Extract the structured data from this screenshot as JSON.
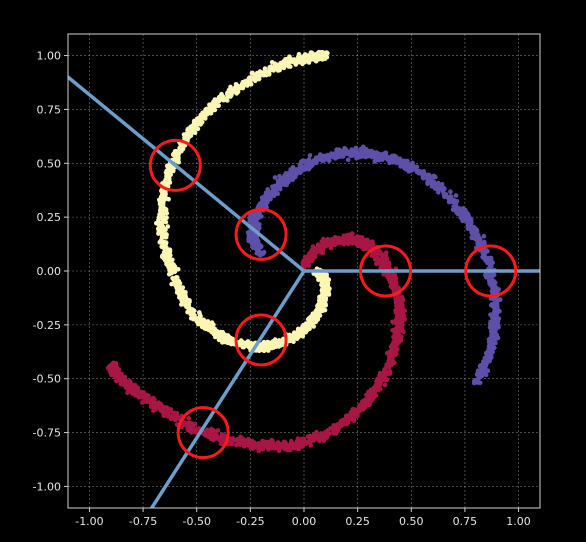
{
  "chart_data": {
    "type": "scatter",
    "title": "",
    "xlabel": "",
    "ylabel": "",
    "xlim": [
      -1.1,
      1.1
    ],
    "ylim": [
      -1.1,
      1.1
    ],
    "grid": true,
    "xticks": [
      "-1.00",
      "-0.75",
      "-0.50",
      "-0.25",
      "0.00",
      "0.25",
      "0.50",
      "0.75",
      "1.00"
    ],
    "yticks": [
      "-1.00",
      "-0.75",
      "-0.50",
      "-0.25",
      "0.00",
      "0.25",
      "0.50",
      "0.75",
      "1.00"
    ],
    "xtick_values": [
      -1,
      -0.75,
      -0.5,
      -0.25,
      0,
      0.25,
      0.5,
      0.75,
      1
    ],
    "ytick_values": [
      -1,
      -0.75,
      -0.5,
      -0.25,
      0,
      0.25,
      0.5,
      0.75,
      1
    ],
    "series": [
      {
        "color": "#fbf6b4",
        "points": [
          [
            0.06,
            -0.01
          ],
          [
            0.1,
            -0.03
          ],
          [
            0.1,
            -0.09
          ],
          [
            0.08,
            -0.17
          ],
          [
            0.04,
            -0.23
          ],
          [
            -0.02,
            -0.29
          ],
          [
            -0.1,
            -0.33
          ],
          [
            -0.2,
            -0.35
          ],
          [
            -0.3,
            -0.34
          ],
          [
            -0.4,
            -0.3
          ],
          [
            -0.5,
            -0.22
          ],
          [
            -0.57,
            -0.11
          ],
          [
            -0.63,
            0.03
          ],
          [
            -0.66,
            0.18
          ],
          [
            -0.66,
            0.32
          ],
          [
            -0.63,
            0.47
          ],
          [
            -0.56,
            0.6
          ],
          [
            -0.47,
            0.72
          ],
          [
            -0.36,
            0.82
          ],
          [
            -0.23,
            0.9
          ],
          [
            -0.1,
            0.96
          ],
          [
            0.02,
            0.99
          ],
          [
            0.1,
            1.0
          ]
        ],
        "jitter": 0.025
      },
      {
        "color": "#5e50a8",
        "points": [
          [
            -0.2,
            0.08
          ],
          [
            -0.24,
            0.16
          ],
          [
            -0.23,
            0.24
          ],
          [
            -0.18,
            0.33
          ],
          [
            -0.1,
            0.42
          ],
          [
            0.0,
            0.49
          ],
          [
            0.13,
            0.54
          ],
          [
            0.27,
            0.55
          ],
          [
            0.42,
            0.52
          ],
          [
            0.56,
            0.45
          ],
          [
            0.68,
            0.34
          ],
          [
            0.78,
            0.21
          ],
          [
            0.85,
            0.06
          ],
          [
            0.89,
            -0.1
          ],
          [
            0.89,
            -0.26
          ],
          [
            0.86,
            -0.4
          ],
          [
            0.8,
            -0.53
          ]
        ],
        "jitter": 0.028
      },
      {
        "color": "#a81646",
        "points": [
          [
            0.0,
            0.03
          ],
          [
            0.06,
            0.1
          ],
          [
            0.14,
            0.14
          ],
          [
            0.22,
            0.15
          ],
          [
            0.3,
            0.12
          ],
          [
            0.37,
            0.05
          ],
          [
            0.42,
            -0.05
          ],
          [
            0.45,
            -0.17
          ],
          [
            0.44,
            -0.3
          ],
          [
            0.4,
            -0.43
          ],
          [
            0.33,
            -0.56
          ],
          [
            0.23,
            -0.67
          ],
          [
            0.1,
            -0.76
          ],
          [
            -0.05,
            -0.81
          ],
          [
            -0.21,
            -0.81
          ],
          [
            -0.37,
            -0.78
          ],
          [
            -0.52,
            -0.73
          ],
          [
            -0.65,
            -0.65
          ],
          [
            -0.77,
            -0.57
          ],
          [
            -0.87,
            -0.49
          ],
          [
            -0.9,
            -0.43
          ]
        ],
        "jitter": 0.028
      }
    ],
    "lines": [
      {
        "x": [
          0.0,
          -1.1
        ],
        "y": [
          0.0,
          0.9
        ],
        "color": "#6c9ecb"
      },
      {
        "x": [
          0.0,
          1.1
        ],
        "y": [
          0.0,
          0.0
        ],
        "color": "#6c9ecb"
      },
      {
        "x": [
          0.0,
          -0.71
        ],
        "y": [
          0.0,
          -1.1
        ],
        "color": "#6c9ecb"
      }
    ],
    "circles": [
      {
        "x": -0.6,
        "y": 0.49,
        "color": "#ff1a1a"
      },
      {
        "x": -0.2,
        "y": 0.17,
        "color": "#ff1a1a"
      },
      {
        "x": -0.2,
        "y": -0.32,
        "color": "#ff1a1a"
      },
      {
        "x": -0.47,
        "y": -0.75,
        "color": "#ff1a1a"
      },
      {
        "x": 0.38,
        "y": 0.0,
        "color": "#ff1a1a"
      },
      {
        "x": 0.87,
        "y": 0.0,
        "color": "#ff1a1a"
      }
    ],
    "colors": {
      "background": "#000000",
      "axes": "#cfcfcf",
      "grid": "#d9d9d9",
      "ticks": "#e6e6e6"
    }
  }
}
